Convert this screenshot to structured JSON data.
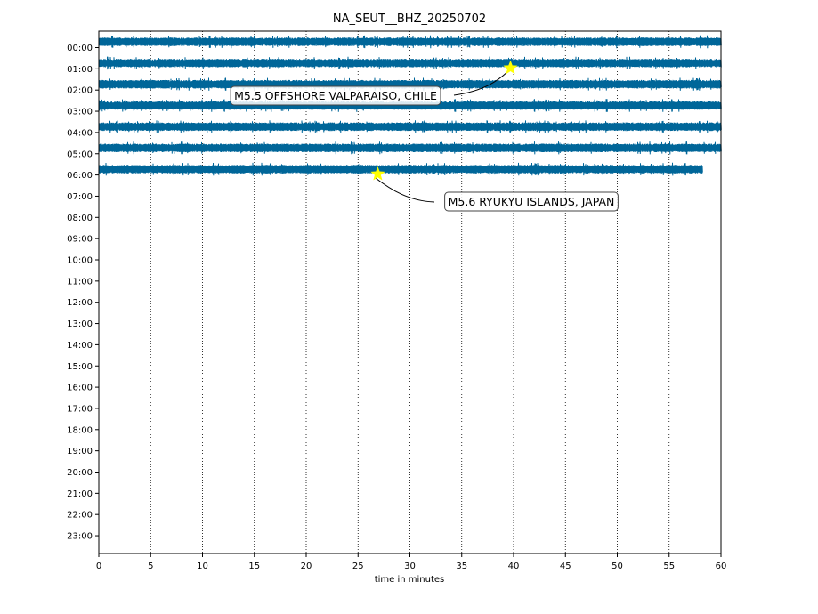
{
  "chart_data": {
    "type": "line",
    "title": "NA_SEUT__BHZ_20250702",
    "xlabel": "time in minutes",
    "ylabel": "",
    "xlim": [
      0,
      60
    ],
    "x_ticks": [
      "0",
      "5",
      "10",
      "15",
      "20",
      "25",
      "30",
      "35",
      "40",
      "45",
      "50",
      "55",
      "60"
    ],
    "y_ticks": [
      "00:00",
      "01:00",
      "02:00",
      "03:00",
      "04:00",
      "05:00",
      "06:00",
      "07:00",
      "08:00",
      "09:00",
      "10:00",
      "11:00",
      "12:00",
      "13:00",
      "14:00",
      "15:00",
      "16:00",
      "17:00",
      "18:00",
      "19:00",
      "20:00",
      "21:00",
      "22:00",
      "23:00"
    ],
    "grid": "vertical dotted",
    "trace_color": "#006699",
    "marker_color": "#ffff00",
    "traces": [
      {
        "hour": 0,
        "start_min": 0,
        "end_min": 60
      },
      {
        "hour": 1,
        "start_min": 0,
        "end_min": 60
      },
      {
        "hour": 2,
        "start_min": 0,
        "end_min": 60
      },
      {
        "hour": 3,
        "start_min": 0,
        "end_min": 60
      },
      {
        "hour": 4,
        "start_min": 0,
        "end_min": 60
      },
      {
        "hour": 5,
        "start_min": 0,
        "end_min": 60
      },
      {
        "hour": 6,
        "start_min": 0,
        "end_min": 58.2
      }
    ],
    "events": [
      {
        "label": "M5.5 OFFSHORE VALPARAISO, CHILE",
        "hour": 1,
        "minute": 39.7
      },
      {
        "label": "M5.6 RYUKYU ISLANDS, JAPAN",
        "hour": 6,
        "minute": 26.9
      }
    ]
  }
}
